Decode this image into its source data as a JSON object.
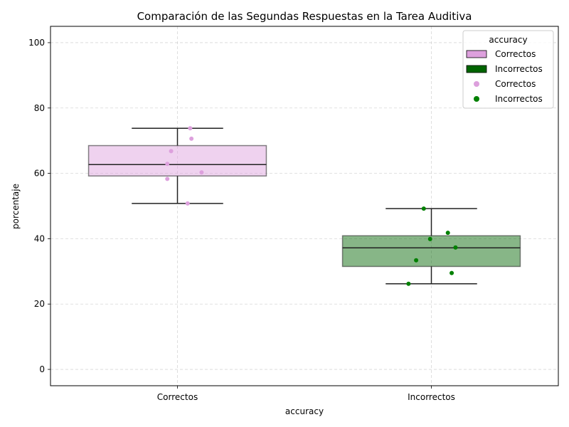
{
  "chart_data": {
    "type": "box",
    "title": "Comparación de las Segundas Respuestas en la Tarea Auditiva",
    "xlabel": "accuracy",
    "ylabel": "porcentaje",
    "ylim": [
      -5,
      105
    ],
    "yticks": [
      0,
      20,
      40,
      60,
      80,
      100
    ],
    "grid": true,
    "categories": [
      "Correctos",
      "Incorrectos"
    ],
    "boxes": [
      {
        "category": "Correctos",
        "whisker_low": 50.8,
        "q1": 59.2,
        "median": 62.7,
        "q3": 68.5,
        "whisker_high": 73.8,
        "color": "#dda0dd"
      },
      {
        "category": "Incorrectos",
        "whisker_low": 26.2,
        "q1": 31.5,
        "median": 37.2,
        "q3": 40.9,
        "whisker_high": 49.2,
        "color": "#006400"
      }
    ],
    "points": [
      {
        "category": "Correctos",
        "jitter": 0.05,
        "y": 73.8
      },
      {
        "category": "Correctos",
        "jitter": 0.055,
        "y": 70.6
      },
      {
        "category": "Correctos",
        "jitter": -0.025,
        "y": 66.8
      },
      {
        "category": "Correctos",
        "jitter": -0.04,
        "y": 62.9
      },
      {
        "category": "Correctos",
        "jitter": 0.095,
        "y": 60.3
      },
      {
        "category": "Correctos",
        "jitter": -0.04,
        "y": 58.3
      },
      {
        "category": "Correctos",
        "jitter": 0.04,
        "y": 50.8
      },
      {
        "category": "Incorrectos",
        "jitter": -0.03,
        "y": 49.2
      },
      {
        "category": "Incorrectos",
        "jitter": 0.065,
        "y": 41.8
      },
      {
        "category": "Incorrectos",
        "jitter": -0.005,
        "y": 39.9
      },
      {
        "category": "Incorrectos",
        "jitter": 0.095,
        "y": 37.3
      },
      {
        "category": "Incorrectos",
        "jitter": -0.06,
        "y": 33.4
      },
      {
        "category": "Incorrectos",
        "jitter": 0.08,
        "y": 29.5
      },
      {
        "category": "Incorrectos",
        "jitter": -0.09,
        "y": 26.2
      }
    ],
    "point_colors": {
      "Correctos": "#dda0dd",
      "Incorrectos": "#008000"
    },
    "legend": {
      "title": "accuracy",
      "placement": "top-right",
      "entries": [
        {
          "label": "Correctos",
          "kind": "patch",
          "color": "#dda0dd"
        },
        {
          "label": "Incorrectos",
          "kind": "patch",
          "color": "#006400"
        },
        {
          "label": "Correctos",
          "kind": "marker",
          "color": "#dda0dd"
        },
        {
          "label": "Incorrectos",
          "kind": "marker",
          "color": "#008000"
        }
      ]
    }
  }
}
